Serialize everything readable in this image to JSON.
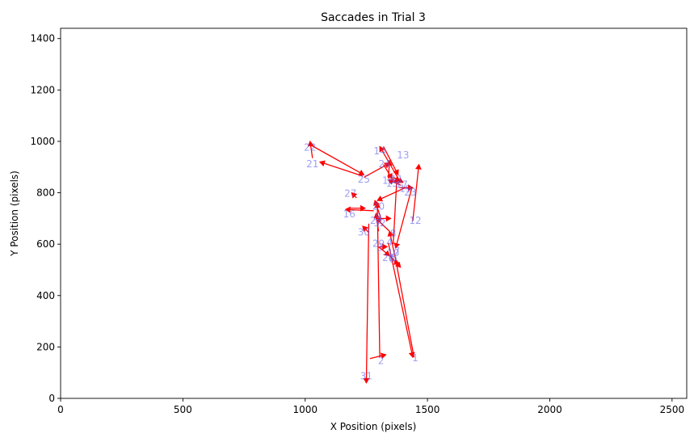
{
  "chart_data": {
    "type": "line",
    "title": "Saccades in Trial 3",
    "xlabel": "X Position (pixels)",
    "ylabel": "Y Position (pixels)",
    "xlim": [
      0,
      2560
    ],
    "ylim": [
      0,
      1440
    ],
    "xticks": [
      0,
      500,
      1000,
      1500,
      2000,
      2500
    ],
    "yticks": [
      0,
      200,
      400,
      600,
      800,
      1000,
      1200,
      1400
    ],
    "grid": false,
    "arrow_color": "#ff0000",
    "label_color": "#5e5ef0",
    "saccades": [
      {
        "label": "1",
        "x0": 1445,
        "y0": 160,
        "x1": 1370,
        "y1": 540
      },
      {
        "label": "2",
        "x0": 1305,
        "y0": 160,
        "x1": 1295,
        "y1": 760
      },
      {
        "label": "3",
        "x0": 1300,
        "y0": 590,
        "x1": 1345,
        "y1": 555
      },
      {
        "label": "4",
        "x0": 1370,
        "y0": 540,
        "x1": 1345,
        "y1": 650
      },
      {
        "label": "5",
        "x0": 1345,
        "y0": 555,
        "x1": 1390,
        "y1": 510
      },
      {
        "label": "6",
        "x0": 1345,
        "y0": 650,
        "x1": 1290,
        "y1": 700
      },
      {
        "label": "7",
        "x0": 1290,
        "y0": 700,
        "x1": 1350,
        "y1": 700
      },
      {
        "label": "8",
        "x0": 1340,
        "y0": 605,
        "x1": 1440,
        "y1": 160
      },
      {
        "label": "9",
        "x0": 1310,
        "y0": 700,
        "x1": 1285,
        "y1": 770
      },
      {
        "label": "10",
        "x0": 1360,
        "y0": 600,
        "x1": 1375,
        "y1": 860
      },
      {
        "label": "11",
        "x0": 1360,
        "y0": 860,
        "x1": 1400,
        "y1": 840
      },
      {
        "label": "12",
        "x0": 1440,
        "y0": 690,
        "x1": 1465,
        "y1": 910
      },
      {
        "label": "13",
        "x0": 1390,
        "y0": 840,
        "x1": 1305,
        "y1": 980
      },
      {
        "label": "14",
        "x0": 1320,
        "y0": 980,
        "x1": 1380,
        "y1": 870
      },
      {
        "label": "15",
        "x0": 1390,
        "y0": 830,
        "x1": 1340,
        "y1": 850
      },
      {
        "label": "16",
        "x0": 1280,
        "y0": 730,
        "x1": 1165,
        "y1": 735
      },
      {
        "label": "17",
        "x0": 1410,
        "y0": 820,
        "x1": 1295,
        "y1": 770
      },
      {
        "label": "18",
        "x0": 1340,
        "y0": 855,
        "x1": 1345,
        "y1": 925
      },
      {
        "label": "19",
        "x0": 1385,
        "y0": 820,
        "x1": 1440,
        "y1": 820
      },
      {
        "label": "20",
        "x0": 1180,
        "y0": 740,
        "x1": 1245,
        "y1": 740
      },
      {
        "label": "21",
        "x0": 1235,
        "y0": 865,
        "x1": 1060,
        "y1": 920
      },
      {
        "label": "22",
        "x0": 1030,
        "y0": 935,
        "x1": 1020,
        "y1": 1000
      },
      {
        "label": "23",
        "x0": 1015,
        "y0": 990,
        "x1": 1240,
        "y1": 870
      },
      {
        "label": "24",
        "x0": 1320,
        "y0": 910,
        "x1": 1355,
        "y1": 855
      },
      {
        "label": "25",
        "x0": 1240,
        "y0": 860,
        "x1": 1345,
        "y1": 915
      },
      {
        "label": "26",
        "x0": 1435,
        "y0": 815,
        "x1": 1370,
        "y1": 585
      },
      {
        "label": "27",
        "x0": 1210,
        "y0": 780,
        "x1": 1190,
        "y1": 800
      },
      {
        "label": "28",
        "x0": 1300,
        "y0": 650,
        "x1": 1290,
        "y1": 720
      },
      {
        "label": "29",
        "x0": 1305,
        "y0": 590,
        "x1": 1335,
        "y1": 590
      },
      {
        "label": "30",
        "x0": 1260,
        "y0": 645,
        "x1": 1235,
        "y1": 670
      },
      {
        "label": "31",
        "x0": 1260,
        "y0": 680,
        "x1": 1250,
        "y1": 60
      },
      {
        "label": "32",
        "x0": 1265,
        "y0": 155,
        "x1": 1330,
        "y1": 170
      }
    ],
    "labels": [
      {
        "text": "1",
        "x": 1450,
        "y": 155
      },
      {
        "text": "2",
        "x": 1310,
        "y": 145
      },
      {
        "text": "3",
        "x": 1305,
        "y": 585
      },
      {
        "text": "4",
        "x": 1345,
        "y": 605
      },
      {
        "text": "5",
        "x": 1365,
        "y": 545
      },
      {
        "text": "6",
        "x": 1355,
        "y": 540
      },
      {
        "text": "7",
        "x": 1375,
        "y": 570
      },
      {
        "text": "8",
        "x": 1360,
        "y": 640
      },
      {
        "text": "9",
        "x": 1300,
        "y": 705
      },
      {
        "text": "10",
        "x": 1360,
        "y": 565
      },
      {
        "text": "11",
        "x": 1375,
        "y": 850
      },
      {
        "text": "12",
        "x": 1450,
        "y": 690
      },
      {
        "text": "13",
        "x": 1400,
        "y": 945
      },
      {
        "text": "14",
        "x": 1305,
        "y": 960
      },
      {
        "text": "15",
        "x": 1355,
        "y": 835
      },
      {
        "text": "16",
        "x": 1180,
        "y": 715
      },
      {
        "text": "17",
        "x": 1395,
        "y": 830
      },
      {
        "text": "18",
        "x": 1340,
        "y": 845
      },
      {
        "text": "19",
        "x": 1410,
        "y": 815
      },
      {
        "text": "20",
        "x": 1300,
        "y": 745
      },
      {
        "text": "21",
        "x": 1030,
        "y": 910
      },
      {
        "text": "22",
        "x": 1020,
        "y": 975
      },
      {
        "text": "23",
        "x": 1430,
        "y": 800
      },
      {
        "text": "24",
        "x": 1325,
        "y": 910
      },
      {
        "text": "25",
        "x": 1240,
        "y": 850
      },
      {
        "text": "26",
        "x": 1340,
        "y": 545
      },
      {
        "text": "27",
        "x": 1185,
        "y": 795
      },
      {
        "text": "28",
        "x": 1290,
        "y": 690
      },
      {
        "text": "29",
        "x": 1300,
        "y": 600
      },
      {
        "text": "30",
        "x": 1240,
        "y": 645
      },
      {
        "text": "31",
        "x": 1250,
        "y": 85
      },
      {
        "text": "32",
        "x": 1305,
        "y": 680
      }
    ]
  }
}
